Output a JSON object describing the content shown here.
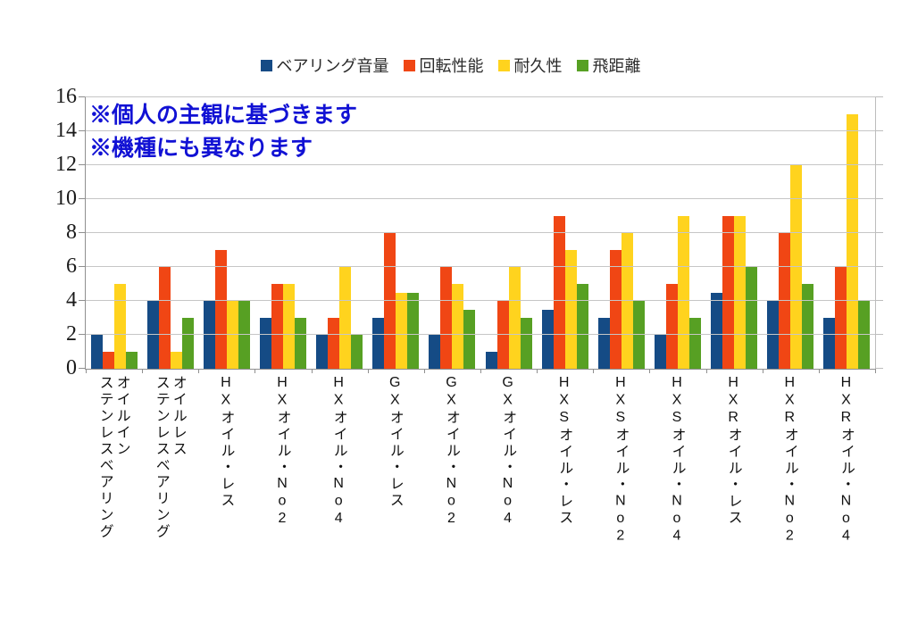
{
  "legend": {
    "items": [
      {
        "label": "ベアリング音量",
        "color": "#154B85"
      },
      {
        "label": "回転性能",
        "color": "#F04614"
      },
      {
        "label": "耐久性",
        "color": "#FFD31E"
      },
      {
        "label": "飛距離",
        "color": "#57A023"
      }
    ]
  },
  "annotation": {
    "line1": "※個人の主観に基づきます",
    "line2": "※機種にも異なります",
    "color": "#1111D4"
  },
  "y_axis": {
    "ticks": [
      0,
      2,
      4,
      6,
      8,
      10,
      12,
      14,
      16
    ]
  },
  "chart_data": {
    "type": "bar",
    "title": "",
    "xlabel": "",
    "ylabel": "",
    "ylim": [
      0,
      16
    ],
    "ytick_step": 2,
    "grid": true,
    "legend_position": "top",
    "annotations": [
      "※個人の主観に基づきます",
      "※機種にも異なります"
    ],
    "categories": [
      "オイルイン\nステンレスベアリング",
      "オイルレス\nステンレスベアリング",
      "HXオイル・レス",
      "HXオイル・No2",
      "HXオイル・No4",
      "GXオイル・レス",
      "GXオイル・No2",
      "GXオイル・No4",
      "HXSオイル・レス",
      "HXSオイル・No2",
      "HXSオイル・No4",
      "HXRオイル・レス",
      "HXRオイル・No2",
      "HXRオイル・No4"
    ],
    "series": [
      {
        "name": "ベアリング音量",
        "color": "#154B85",
        "values": [
          2,
          4,
          4,
          3,
          2,
          3,
          2,
          1,
          3.5,
          3,
          2,
          4.5,
          4,
          3
        ]
      },
      {
        "name": "回転性能",
        "color": "#F04614",
        "values": [
          1,
          6,
          7,
          5,
          3,
          8,
          6,
          4,
          9,
          7,
          5,
          9,
          8,
          6
        ]
      },
      {
        "name": "耐久性",
        "color": "#FFD31E",
        "values": [
          5,
          1,
          4,
          5,
          6,
          4.5,
          5,
          6,
          7,
          8,
          9,
          9,
          12,
          15
        ]
      },
      {
        "name": "飛距離",
        "color": "#57A023",
        "values": [
          1,
          3,
          4,
          3,
          2,
          4.5,
          3.5,
          3,
          5,
          4,
          3,
          6,
          5,
          4
        ]
      }
    ]
  }
}
